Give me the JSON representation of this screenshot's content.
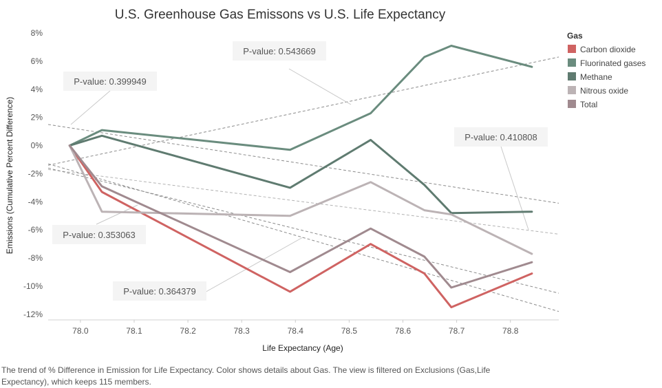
{
  "chart_data": {
    "type": "line",
    "title": "U.S. Greenhouse Gas Emissons vs U.S. Life Expectancy",
    "xlabel": "Life Expectancy (Age)",
    "ylabel": "Emissions (Cumulative Percent Difference)",
    "xlim": [
      77.94,
      78.89
    ],
    "ylim": [
      -12.4,
      8.3
    ],
    "x_ticks": [
      "78.0",
      "78.1",
      "78.2",
      "78.3",
      "78.4",
      "78.5",
      "78.6",
      "78.7",
      "78.8"
    ],
    "y_ticks": [
      "8%",
      "6%",
      "4%",
      "2%",
      "0%",
      "-2%",
      "-4%",
      "-6%",
      "-8%",
      "-10%",
      "-12%"
    ],
    "grid": false,
    "legend": {
      "title": "Gas",
      "placement": "right"
    },
    "series": [
      {
        "name": "Carbon dioxide",
        "color": "#cf6362",
        "x": [
          77.98,
          78.04,
          78.39,
          78.54,
          78.64,
          78.69,
          78.84
        ],
        "y": [
          0.0,
          -3.3,
          -10.4,
          -7.0,
          -9.1,
          -11.5,
          -9.1
        ]
      },
      {
        "name": "Fluorinated gases",
        "color": "#6a8c7e",
        "x": [
          77.98,
          78.04,
          78.39,
          78.54,
          78.64,
          78.69,
          78.84
        ],
        "y": [
          0.0,
          1.1,
          -0.3,
          2.3,
          6.3,
          7.1,
          5.6
        ]
      },
      {
        "name": "Methane",
        "color": "#5f7b70",
        "x": [
          77.98,
          78.04,
          78.39,
          78.54,
          78.64,
          78.69,
          78.84
        ],
        "y": [
          0.0,
          0.7,
          -3.0,
          0.4,
          -2.8,
          -4.8,
          -4.7
        ]
      },
      {
        "name": "Nitrous oxide",
        "color": "#bcb3b5",
        "x": [
          77.98,
          78.04,
          78.39,
          78.54,
          78.64,
          78.69,
          78.84
        ],
        "y": [
          0.0,
          -4.7,
          -5.0,
          -2.6,
          -4.6,
          -4.9,
          -7.7
        ]
      },
      {
        "name": "Total",
        "color": "#a08a8f",
        "x": [
          77.98,
          78.04,
          78.39,
          78.54,
          78.64,
          78.69,
          78.84
        ],
        "y": [
          0.0,
          -2.9,
          -9.0,
          -5.9,
          -7.9,
          -10.1,
          -8.3
        ]
      }
    ],
    "trend_lines": [
      {
        "color": "#8a8a8a",
        "x": [
          77.94,
          78.89
        ],
        "y": [
          -1.4,
          6.3
        ]
      },
      {
        "color": "#8a8a8a",
        "x": [
          77.94,
          78.89
        ],
        "y": [
          1.5,
          -4.1
        ]
      },
      {
        "color": "#b2b2b2",
        "x": [
          77.94,
          78.89
        ],
        "y": [
          -1.7,
          -6.3
        ]
      },
      {
        "color": "#8a8a8a",
        "x": [
          77.94,
          78.89
        ],
        "y": [
          -1.6,
          -10.5
        ]
      },
      {
        "color": "#8a8a8a",
        "x": [
          77.94,
          78.89
        ],
        "y": [
          -1.3,
          -11.8
        ]
      }
    ],
    "annotations": [
      {
        "text": "P-value: 0.543669",
        "color": "#555555"
      },
      {
        "text": "P-value: 0.399949",
        "color": "#555555"
      },
      {
        "text": "P-value: 0.410808",
        "color": "#555555"
      },
      {
        "text": "P-value: 0.353063",
        "color": "#cf6362"
      },
      {
        "text": "P-value: 0.364379",
        "color": "#555555"
      }
    ]
  },
  "caption": "The trend of % Difference in Emission for Life Expectancy.  Color shows details about Gas. The view is filtered on Exclusions (Gas,Life Expectancy), which keeps 115 members."
}
